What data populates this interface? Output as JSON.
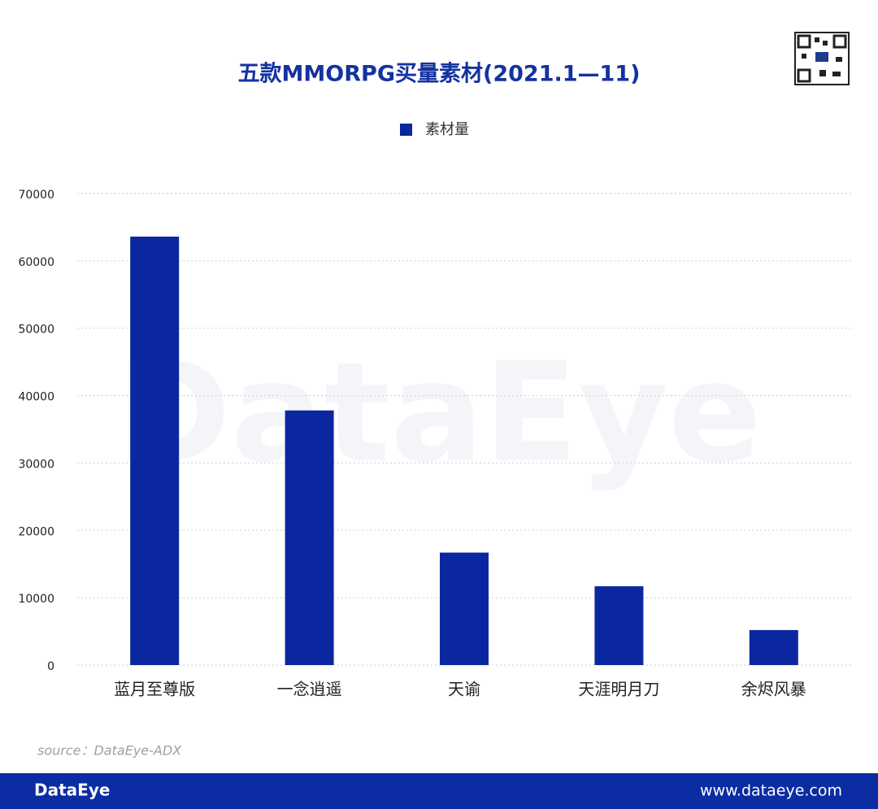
{
  "chart_data": {
    "type": "bar",
    "title": "五款MMORPG买量素材(2021.1—11)",
    "categories": [
      "蓝月至尊版",
      "一念逍遥",
      "天谕",
      "天涯明月刀",
      "余烬风暴"
    ],
    "series": [
      {
        "name": "素材量",
        "color": "#0b27a0",
        "values": [
          63600,
          37800,
          16700,
          11700,
          5200
        ]
      }
    ],
    "ylim": [
      0,
      70000
    ],
    "yticks": [
      0,
      10000,
      20000,
      30000,
      40000,
      50000,
      60000,
      70000
    ],
    "grid": true,
    "source": "source：DataEye-ADX"
  },
  "watermark": "DataEye",
  "footer": {
    "brand": "DataEye",
    "url": "www.dataeye.com"
  }
}
